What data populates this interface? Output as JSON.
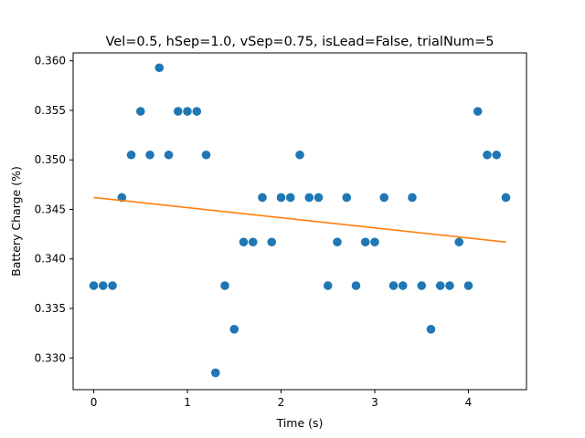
{
  "chart_data": {
    "type": "scatter",
    "title": "Vel=0.5, hSep=1.0, vSep=0.75, isLead=False, trialNum=5",
    "xlabel": "Time (s)",
    "ylabel": "Battery Charge (%)",
    "xlim": [
      -0.22,
      4.62
    ],
    "ylim": [
      0.3268,
      0.3608
    ],
    "xticks": [
      0,
      1,
      2,
      3,
      4
    ],
    "yticks": [
      0.33,
      0.335,
      0.34,
      0.345,
      0.35,
      0.355,
      0.36
    ],
    "ytick_labels": [
      "0.330",
      "0.335",
      "0.340",
      "0.345",
      "0.350",
      "0.355",
      "0.360"
    ],
    "grid": false,
    "legend": "none",
    "series": [
      {
        "kind": "scatter",
        "color": "#1f77b4",
        "x": [
          0.0,
          0.1,
          0.2,
          0.3,
          0.4,
          0.5,
          0.6,
          0.7,
          0.8,
          0.9,
          1.0,
          1.1,
          1.2,
          1.3,
          1.4,
          1.5,
          1.6,
          1.7,
          1.8,
          1.9,
          2.0,
          2.1,
          2.2,
          2.3,
          2.4,
          2.5,
          2.6,
          2.7,
          2.8,
          2.9,
          3.0,
          3.1,
          3.2,
          3.3,
          3.4,
          3.5,
          3.6,
          3.7,
          3.8,
          3.9,
          4.0,
          4.1,
          4.2,
          4.3,
          4.4
        ],
        "y": [
          0.3373,
          0.3373,
          0.3373,
          0.3462,
          0.3505,
          0.3549,
          0.3505,
          0.3593,
          0.3505,
          0.3549,
          0.3549,
          0.3549,
          0.3505,
          0.3285,
          0.3373,
          0.3329,
          0.3417,
          0.3417,
          0.3462,
          0.3417,
          0.3462,
          0.3462,
          0.3505,
          0.3462,
          0.3462,
          0.3373,
          0.3417,
          0.3462,
          0.3373,
          0.3417,
          0.3417,
          0.3462,
          0.3373,
          0.3373,
          0.3462,
          0.3373,
          0.3329,
          0.3373,
          0.3373,
          0.3417,
          0.3373,
          0.3549,
          0.3505,
          0.3505,
          0.3462
        ]
      },
      {
        "kind": "line",
        "color": "#ff7f0e",
        "x": [
          0.0,
          4.4
        ],
        "y": [
          0.3462,
          0.3417
        ]
      }
    ]
  }
}
